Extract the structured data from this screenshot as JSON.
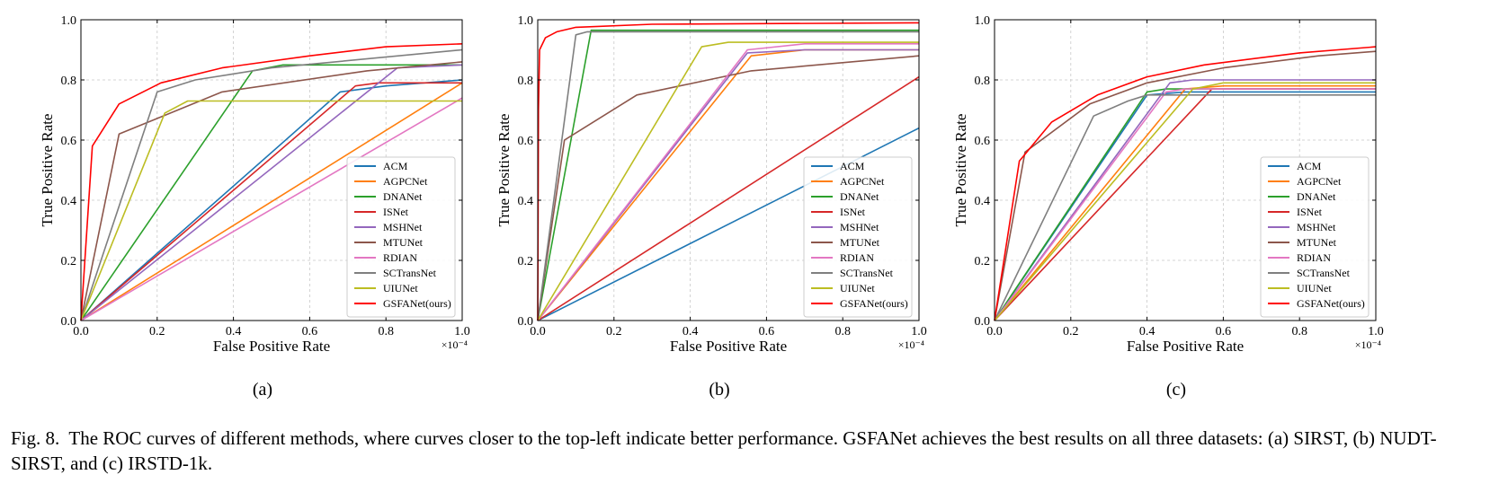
{
  "figure": {
    "caption_prefix": "Fig. 8.",
    "caption_text": "The ROC curves of different methods, where curves closer to the top-left indicate better performance. GSFANet achieves the best results on all three datasets: (a) SIRST, (b) NUDT-SIRST, and (c) IRSTD-1k."
  },
  "colors": {
    "ACM": "#1f77b4",
    "AGPCNet": "#ff7f0e",
    "DNANet": "#2ca02c",
    "ISNet": "#d62728",
    "MSHNet": "#9467bd",
    "MTUNet": "#8c564b",
    "RDIAN": "#e377c2",
    "SCTransNet": "#7f7f7f",
    "UIUNet": "#bcbd22",
    "GSFANet(ours)": "#ff0000"
  },
  "chart_data": [
    {
      "type": "line",
      "panel_label": "(a)",
      "dataset": "SIRST",
      "xlabel": "False Positive Rate",
      "ylabel": "True Positive Rate",
      "x_scale_label": "×10⁻⁴",
      "xlim": [
        0,
        1
      ],
      "ylim": [
        0,
        1
      ],
      "xticks": [
        "0.0",
        "0.2",
        "0.4",
        "0.6",
        "0.8",
        "1.0"
      ],
      "yticks": [
        "0.0",
        "0.2",
        "0.4",
        "0.6",
        "0.8",
        "1.0"
      ],
      "grid": true,
      "legend_position": "bottom-right",
      "series": [
        {
          "name": "ACM",
          "points": [
            [
              0,
              0
            ],
            [
              0.68,
              0.76
            ],
            [
              0.8,
              0.78
            ],
            [
              1,
              0.8
            ]
          ]
        },
        {
          "name": "AGPCNet",
          "points": [
            [
              0,
              0
            ],
            [
              1,
              0.79
            ]
          ]
        },
        {
          "name": "DNANet",
          "points": [
            [
              0,
              0
            ],
            [
              0.45,
              0.83
            ],
            [
              0.53,
              0.85
            ],
            [
              1,
              0.85
            ]
          ]
        },
        {
          "name": "ISNet",
          "points": [
            [
              0,
              0
            ],
            [
              0.72,
              0.78
            ],
            [
              0.78,
              0.79
            ],
            [
              1,
              0.79
            ]
          ]
        },
        {
          "name": "MSHNet",
          "points": [
            [
              0,
              0
            ],
            [
              0.83,
              0.84
            ],
            [
              1,
              0.85
            ]
          ]
        },
        {
          "name": "MTUNet",
          "points": [
            [
              0,
              0
            ],
            [
              0.1,
              0.62
            ],
            [
              0.37,
              0.76
            ],
            [
              0.75,
              0.83
            ],
            [
              1,
              0.86
            ]
          ]
        },
        {
          "name": "RDIAN",
          "points": [
            [
              0,
              0
            ],
            [
              1,
              0.74
            ]
          ]
        },
        {
          "name": "SCTransNet",
          "points": [
            [
              0,
              0
            ],
            [
              0.2,
              0.76
            ],
            [
              0.3,
              0.8
            ],
            [
              0.5,
              0.84
            ],
            [
              1,
              0.9
            ]
          ]
        },
        {
          "name": "UIUNet",
          "points": [
            [
              0,
              0
            ],
            [
              0.22,
              0.69
            ],
            [
              0.28,
              0.73
            ],
            [
              1,
              0.73
            ]
          ]
        },
        {
          "name": "GSFANet(ours)",
          "points": [
            [
              0,
              0
            ],
            [
              0.03,
              0.58
            ],
            [
              0.1,
              0.72
            ],
            [
              0.21,
              0.79
            ],
            [
              0.37,
              0.84
            ],
            [
              0.6,
              0.88
            ],
            [
              0.8,
              0.91
            ],
            [
              1,
              0.92
            ]
          ]
        }
      ]
    },
    {
      "type": "line",
      "panel_label": "(b)",
      "dataset": "NUDT-SIRST",
      "xlabel": "False Positive Rate",
      "ylabel": "True Positive Rate",
      "x_scale_label": "×10⁻⁴",
      "xlim": [
        0,
        1
      ],
      "ylim": [
        0,
        1
      ],
      "xticks": [
        "0.0",
        "0.2",
        "0.4",
        "0.6",
        "0.8",
        "1.0"
      ],
      "yticks": [
        "0.0",
        "0.2",
        "0.4",
        "0.6",
        "0.8",
        "1.0"
      ],
      "grid": true,
      "legend_position": "bottom-right",
      "series": [
        {
          "name": "ACM",
          "points": [
            [
              0,
              0
            ],
            [
              1,
              0.64
            ]
          ]
        },
        {
          "name": "AGPCNet",
          "points": [
            [
              0,
              0
            ],
            [
              0.56,
              0.88
            ],
            [
              0.7,
              0.9
            ],
            [
              1,
              0.9
            ]
          ]
        },
        {
          "name": "DNANet",
          "points": [
            [
              0,
              0
            ],
            [
              0.14,
              0.965
            ],
            [
              1,
              0.965
            ]
          ]
        },
        {
          "name": "ISNet",
          "points": [
            [
              0,
              0
            ],
            [
              1,
              0.81
            ]
          ]
        },
        {
          "name": "MSHNet",
          "points": [
            [
              0,
              0
            ],
            [
              0.55,
              0.89
            ],
            [
              0.7,
              0.9
            ],
            [
              1,
              0.9
            ]
          ]
        },
        {
          "name": "MTUNet",
          "points": [
            [
              0,
              0
            ],
            [
              0.07,
              0.6
            ],
            [
              0.26,
              0.75
            ],
            [
              0.56,
              0.83
            ],
            [
              1,
              0.88
            ]
          ]
        },
        {
          "name": "RDIAN",
          "points": [
            [
              0,
              0
            ],
            [
              0.55,
              0.9
            ],
            [
              0.7,
              0.92
            ],
            [
              1,
              0.92
            ]
          ]
        },
        {
          "name": "SCTransNet",
          "points": [
            [
              0,
              0
            ],
            [
              0.1,
              0.95
            ],
            [
              0.13,
              0.96
            ],
            [
              1,
              0.96
            ]
          ]
        },
        {
          "name": "UIUNet",
          "points": [
            [
              0,
              0
            ],
            [
              0.43,
              0.91
            ],
            [
              0.5,
              0.925
            ],
            [
              1,
              0.925
            ]
          ]
        },
        {
          "name": "GSFANet(ours)",
          "points": [
            [
              0,
              0
            ],
            [
              0.002,
              0.7
            ],
            [
              0.005,
              0.9
            ],
            [
              0.02,
              0.94
            ],
            [
              0.05,
              0.96
            ],
            [
              0.1,
              0.975
            ],
            [
              0.3,
              0.985
            ],
            [
              1,
              0.99
            ]
          ]
        }
      ]
    },
    {
      "type": "line",
      "panel_label": "(c)",
      "dataset": "IRSTD-1k",
      "xlabel": "False Positive Rate",
      "ylabel": "True Positive Rate",
      "x_scale_label": "×10⁻⁴",
      "xlim": [
        0,
        1
      ],
      "ylim": [
        0,
        1
      ],
      "xticks": [
        "0.0",
        "0.2",
        "0.4",
        "0.6",
        "0.8",
        "1.0"
      ],
      "yticks": [
        "0.0",
        "0.2",
        "0.4",
        "0.6",
        "0.8",
        "1.0"
      ],
      "grid": true,
      "legend_position": "bottom-right",
      "series": [
        {
          "name": "ACM",
          "points": [
            [
              0,
              0
            ],
            [
              0.4,
              0.75
            ],
            [
              0.5,
              0.76
            ],
            [
              1,
              0.76
            ]
          ]
        },
        {
          "name": "AGPCNet",
          "points": [
            [
              0,
              0
            ],
            [
              0.5,
              0.77
            ],
            [
              0.6,
              0.78
            ],
            [
              1,
              0.78
            ]
          ]
        },
        {
          "name": "DNANet",
          "points": [
            [
              0,
              0
            ],
            [
              0.4,
              0.76
            ],
            [
              0.45,
              0.77
            ],
            [
              1,
              0.77
            ]
          ]
        },
        {
          "name": "ISNet",
          "points": [
            [
              0,
              0
            ],
            [
              0.57,
              0.77
            ],
            [
              1,
              0.77
            ]
          ]
        },
        {
          "name": "MSHNet",
          "points": [
            [
              0,
              0
            ],
            [
              0.46,
              0.79
            ],
            [
              0.52,
              0.8
            ],
            [
              1,
              0.8
            ]
          ]
        },
        {
          "name": "MTUNet",
          "points": [
            [
              0,
              0
            ],
            [
              0.08,
              0.56
            ],
            [
              0.25,
              0.72
            ],
            [
              0.4,
              0.79
            ],
            [
              0.6,
              0.84
            ],
            [
              0.85,
              0.88
            ],
            [
              1,
              0.895
            ]
          ]
        },
        {
          "name": "RDIAN",
          "points": [
            [
              0,
              0
            ],
            [
              0.45,
              0.76
            ],
            [
              0.5,
              0.77
            ],
            [
              1,
              0.77
            ]
          ]
        },
        {
          "name": "SCTransNet",
          "points": [
            [
              0,
              0
            ],
            [
              0.26,
              0.68
            ],
            [
              0.35,
              0.73
            ],
            [
              0.4,
              0.75
            ],
            [
              1,
              0.75
            ]
          ]
        },
        {
          "name": "UIUNet",
          "points": [
            [
              0,
              0
            ],
            [
              0.52,
              0.77
            ],
            [
              0.6,
              0.79
            ],
            [
              1,
              0.79
            ]
          ]
        },
        {
          "name": "GSFANet(ours)",
          "points": [
            [
              0,
              0
            ],
            [
              0.065,
              0.53
            ],
            [
              0.15,
              0.66
            ],
            [
              0.27,
              0.75
            ],
            [
              0.4,
              0.81
            ],
            [
              0.55,
              0.85
            ],
            [
              0.8,
              0.89
            ],
            [
              1,
              0.91
            ]
          ]
        }
      ]
    }
  ]
}
